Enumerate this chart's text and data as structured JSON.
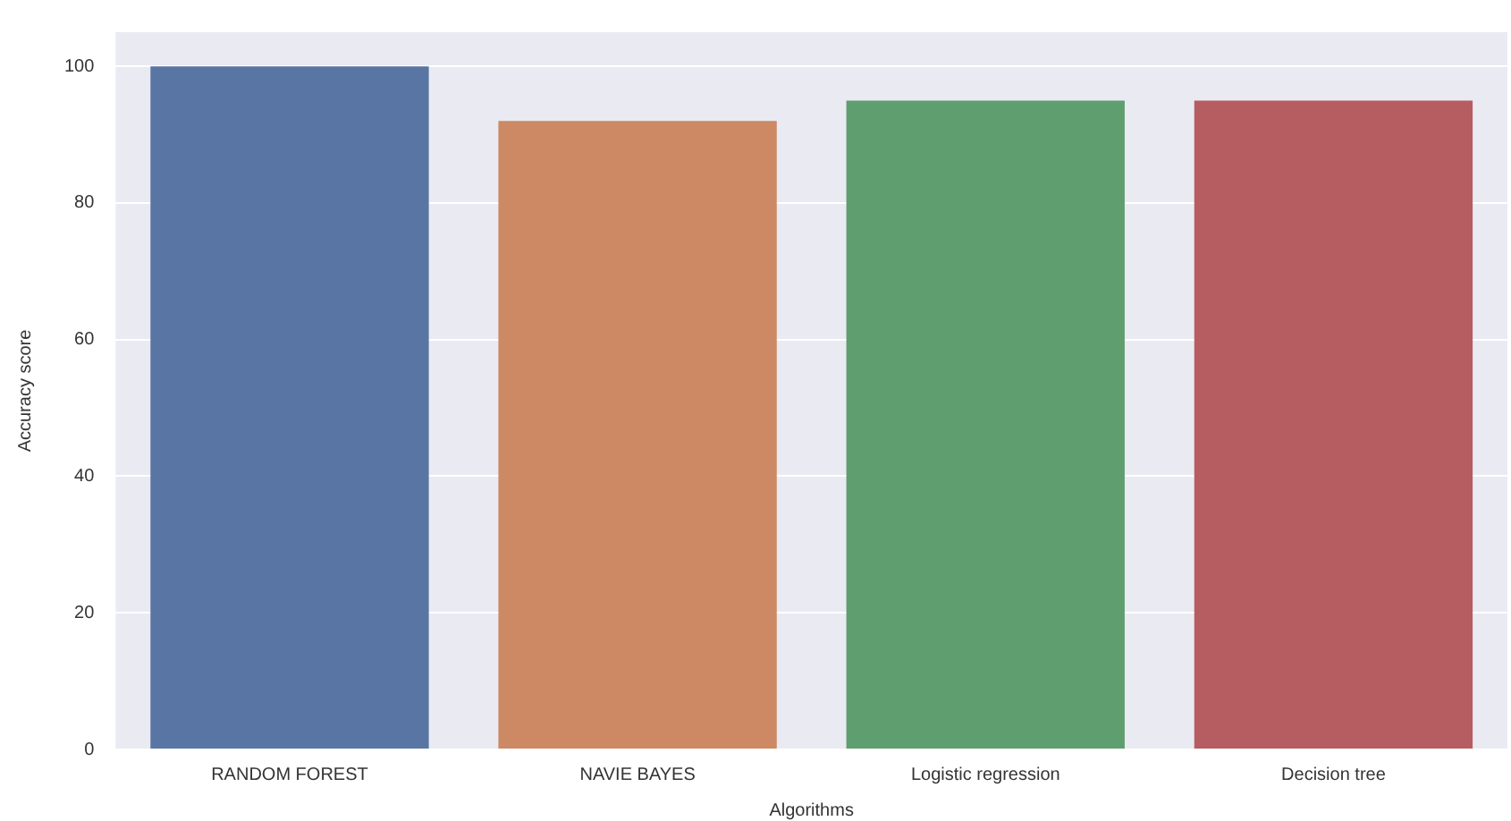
{
  "chart_data": {
    "type": "bar",
    "xlabel": "Algorithms",
    "ylabel": "Accuracy score",
    "categories": [
      "RANDOM FOREST",
      "NAVIE BAYES",
      "Logistic regression",
      "Decision tree"
    ],
    "values": [
      100,
      92,
      95,
      95
    ],
    "colors": [
      "#5875a4",
      "#cc8963",
      "#5f9e6e",
      "#b55d60"
    ],
    "ylim": [
      0,
      105
    ],
    "yticks": [
      0,
      20,
      40,
      60,
      80,
      100
    ],
    "grid": "y",
    "legend": false
  }
}
